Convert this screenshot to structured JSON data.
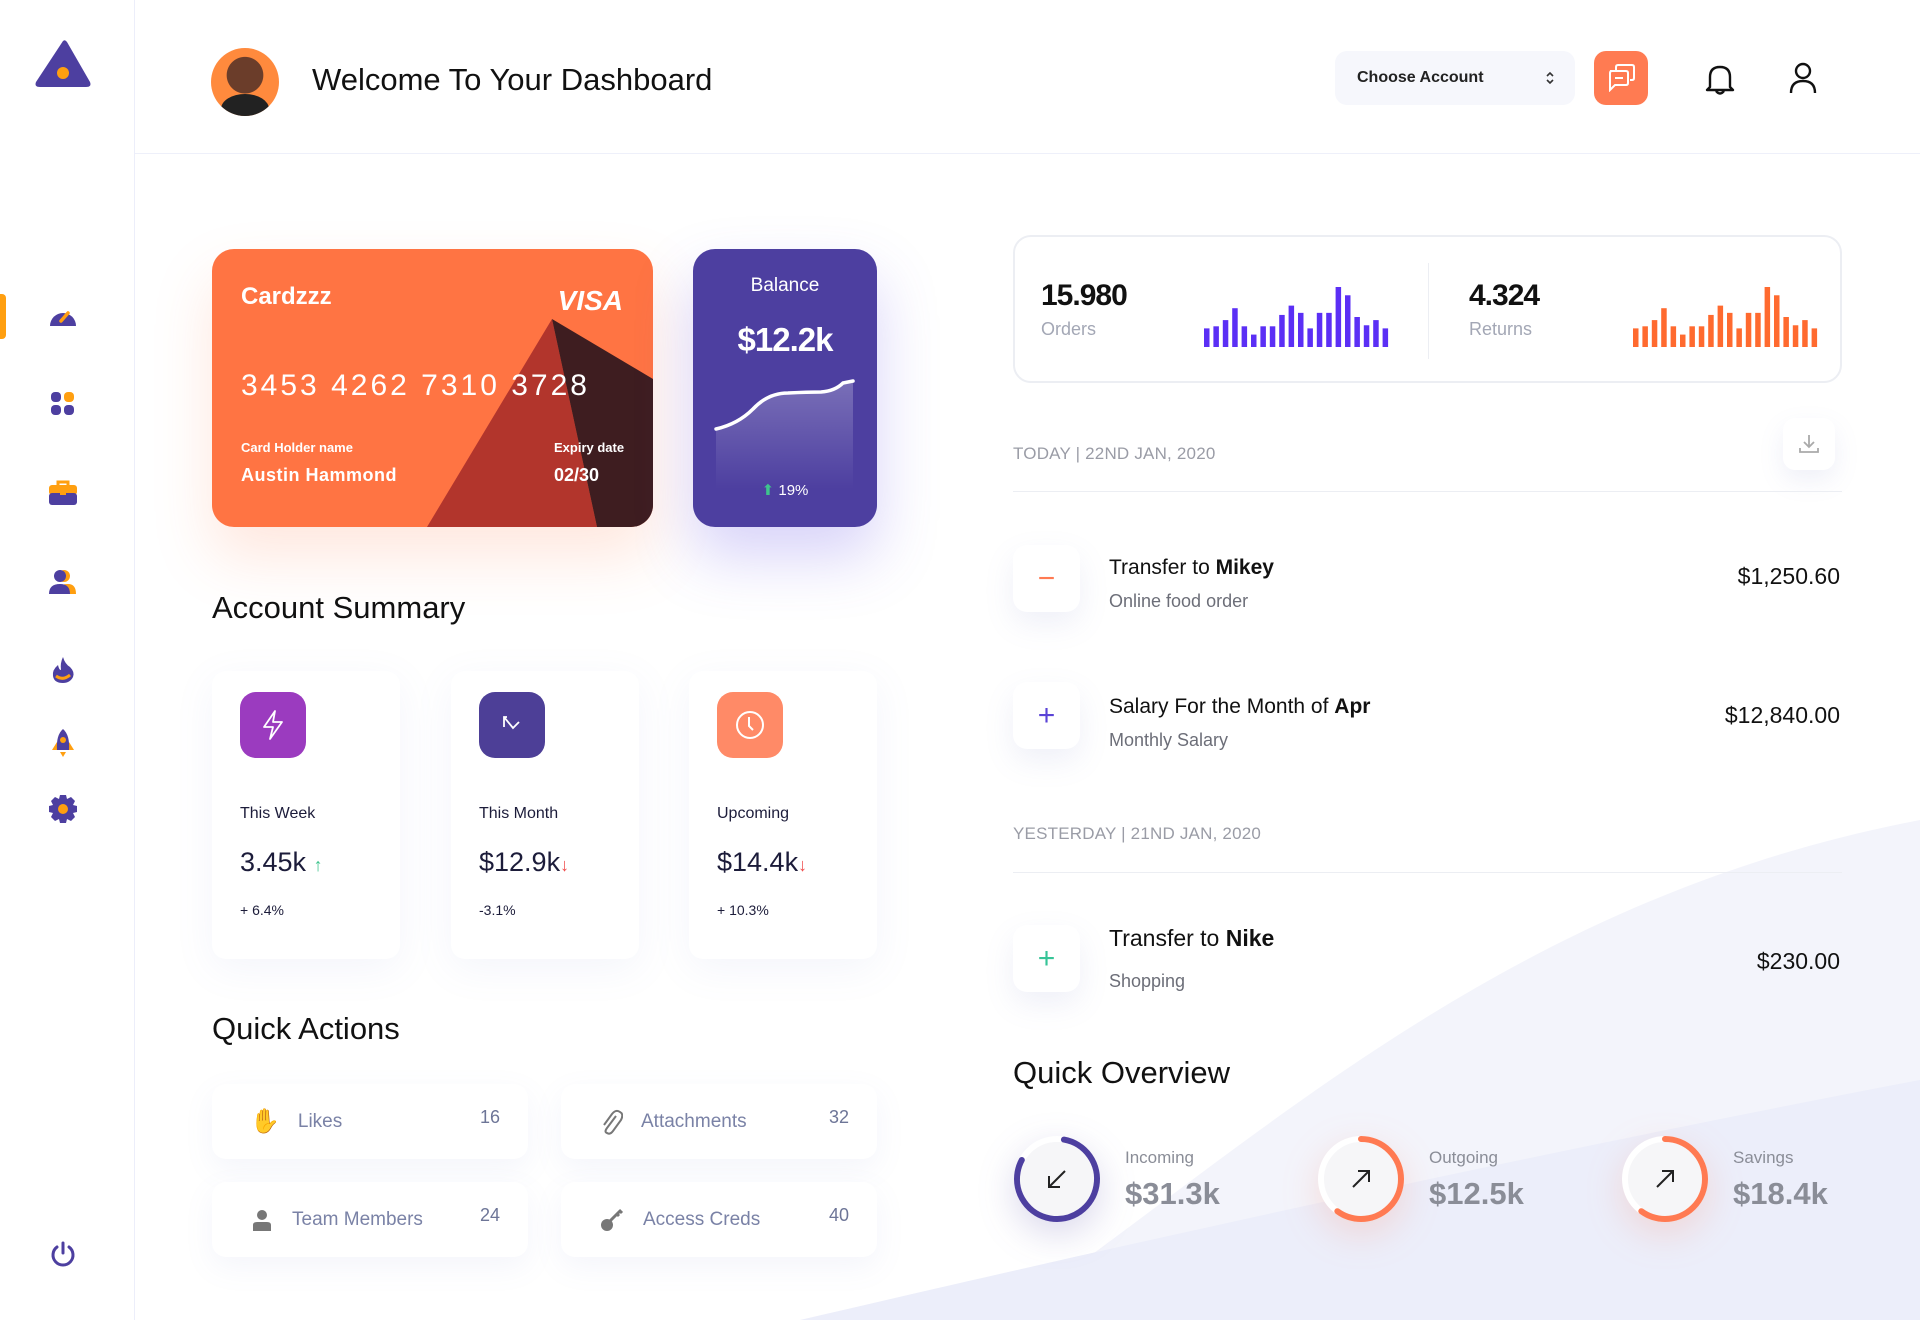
{
  "header": {
    "title": "Welcome To Your Dashboard",
    "account_select": {
      "value": "Choose Account"
    },
    "icons": [
      "chat-icon",
      "bell-icon",
      "user-icon"
    ]
  },
  "sidebar": {
    "items": [
      {
        "icon": "dashboard-gauge-icon",
        "active": true
      },
      {
        "icon": "apps-grid-icon"
      },
      {
        "icon": "briefcase-icon"
      },
      {
        "icon": "users-icon"
      },
      {
        "icon": "fire-icon"
      },
      {
        "icon": "rocket-icon"
      },
      {
        "icon": "settings-gear-icon"
      }
    ],
    "bottom_icon": "power-icon"
  },
  "colors": {
    "primary": "#4d3fa0",
    "accent": "#ff7443",
    "sidebar_accent": "#ff9f10",
    "orders_bars": "#5b2ff5",
    "returns_bars": "#ff6a2f"
  },
  "card": {
    "brand_name": "Cardzzz",
    "network": "VISA",
    "number": "3453 4262 7310 3728",
    "holder_label": "Card Holder name",
    "holder_name": "Austin Hammond",
    "expiry_label": "Expiry date",
    "expiry": "02/30"
  },
  "balance": {
    "label": "Balance",
    "value": "$12.2k",
    "change": "19%"
  },
  "account_summary": {
    "title": "Account Summary",
    "items": [
      {
        "label": "This Week",
        "value": "3.45k",
        "trend": "up",
        "change": "+ 6.4%",
        "icon": "lightning-icon",
        "color": "#9b3bbf"
      },
      {
        "label": "This Month",
        "value": "$12.9k",
        "trend": "down",
        "change": "-3.1%",
        "icon": "arrow-up-left-icon",
        "color": "#4d3f97"
      },
      {
        "label": "Upcoming",
        "value": "$14.4k",
        "trend": "down",
        "change": "+ 10.3%",
        "icon": "clock-icon",
        "color": "#ff8a67"
      }
    ]
  },
  "quick_actions": {
    "title": "Quick Actions",
    "items": [
      {
        "label": "Likes",
        "count": "16",
        "icon": "hand-wave-icon"
      },
      {
        "label": "Attachments",
        "count": "32",
        "icon": "paperclip-icon"
      },
      {
        "label": "Team Members",
        "count": "24",
        "icon": "person-icon"
      },
      {
        "label": "Access Creds",
        "count": "40",
        "icon": "key-icon"
      }
    ]
  },
  "stats": {
    "orders": {
      "value": "15.980",
      "label": "Orders",
      "bars": [
        36,
        40,
        52,
        75,
        40,
        24,
        40,
        40,
        62,
        80,
        66,
        36,
        66,
        66,
        116,
        100,
        58,
        42,
        52,
        36
      ]
    },
    "returns": {
      "value": "4.324",
      "label": "Returns",
      "bars": [
        36,
        40,
        52,
        75,
        40,
        24,
        40,
        40,
        62,
        80,
        66,
        36,
        66,
        66,
        116,
        100,
        58,
        42,
        52,
        36
      ]
    }
  },
  "transactions": {
    "groups": [
      {
        "date": "TODAY | 22ND JAN, 2020",
        "items": [
          {
            "prefix": "Transfer to ",
            "bold": "Mikey",
            "sub": "Online food order",
            "amount": "$1,250.60",
            "sign": "−",
            "sign_color": "#ff7a52"
          },
          {
            "prefix": "Salary For the Month of ",
            "bold": "Apr",
            "sub": "Monthly Salary",
            "amount": "$12,840.00",
            "sign": "+",
            "sign_color": "#5a43d6"
          }
        ]
      },
      {
        "date": "YESTERDAY | 21ND JAN, 2020",
        "items": [
          {
            "prefix": "Transfer to ",
            "bold": "Nike",
            "sub": "Shopping",
            "amount": "$230.00",
            "sign": "+",
            "sign_color": "#36c497"
          }
        ]
      }
    ]
  },
  "quick_overview": {
    "title": "Quick Overview",
    "items": [
      {
        "label": "Incoming",
        "value": "$31.3k",
        "progress": 0.8,
        "color": "#4d3fa0",
        "icon": "arrow-down-left-icon"
      },
      {
        "label": "Outgoing",
        "value": "$12.5k",
        "progress": 0.6,
        "color": "#ff7a52",
        "icon": "arrow-up-right-icon"
      },
      {
        "label": "Savings",
        "value": "$18.4k",
        "progress": 0.6,
        "color": "#ff7a52",
        "icon": "arrow-up-right-icon"
      }
    ]
  }
}
